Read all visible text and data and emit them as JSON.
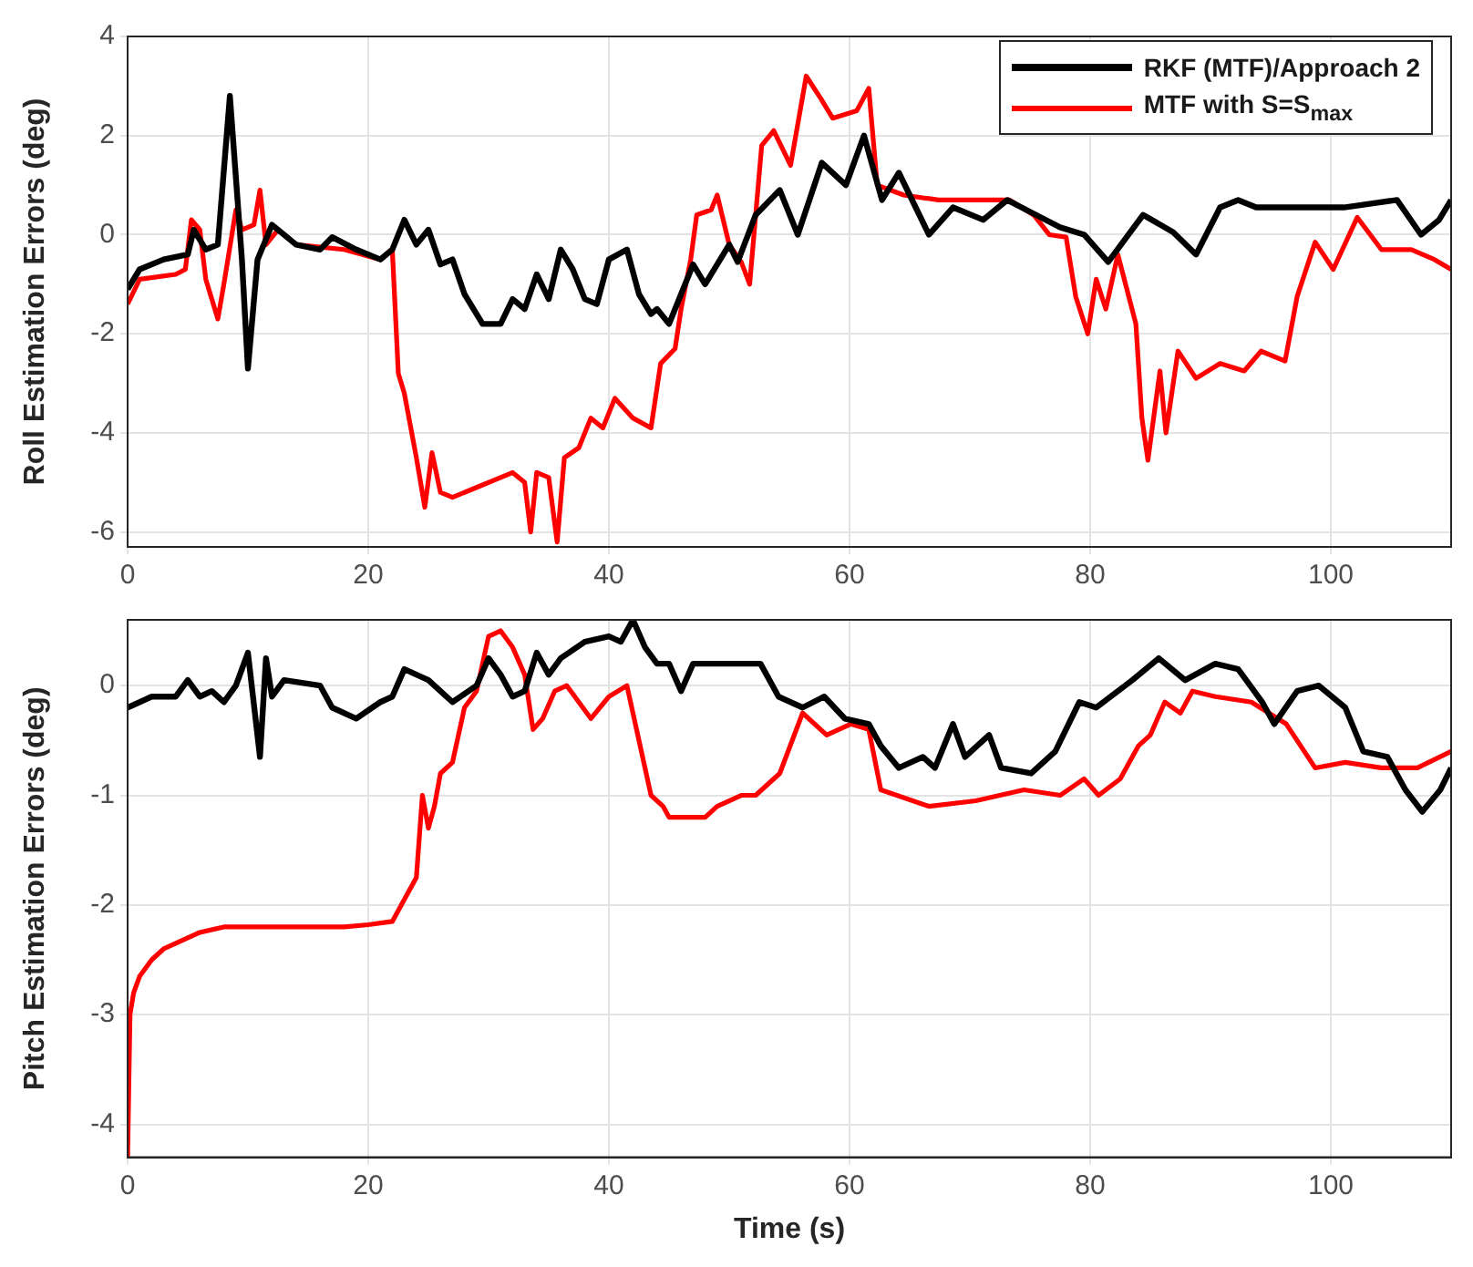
{
  "chart_data": [
    {
      "type": "line",
      "ylabel": "Roll Estimation Errors (deg)",
      "xlim": [
        0,
        110
      ],
      "xticks": [
        0,
        20,
        40,
        60,
        80,
        100
      ],
      "ylim": [
        -6.3,
        4
      ],
      "yticks": [
        -6,
        -4,
        -2,
        0,
        2,
        4
      ],
      "grid": true,
      "legend": "top right",
      "series": [
        {
          "name": "RKF (MTF)/Approach 2",
          "color": "#000000",
          "x": [
            0,
            1,
            3,
            5,
            5.5,
            6.5,
            7.5,
            8.5,
            9.5,
            10,
            10.8,
            12,
            14,
            16,
            17,
            19,
            21,
            22,
            23,
            24,
            25,
            26,
            27,
            28,
            29.5,
            31,
            32,
            33,
            34,
            35,
            36,
            37,
            38,
            39,
            40,
            41.5,
            42.5,
            43.5,
            44,
            45,
            46,
            47,
            48,
            49,
            50,
            50.7,
            52.2,
            54.2,
            55.7,
            57.7,
            59.7,
            61.2,
            62.7,
            64.1,
            66.6,
            68.6,
            71.1,
            73.1,
            75.5,
            77.5,
            79.5,
            81.5,
            84.4,
            86.9,
            88.8,
            90.8,
            92.3,
            93.8,
            101.1,
            105.5,
            107.5,
            109,
            110
          ],
          "values": [
            -1.1,
            -0.7,
            -0.5,
            -0.4,
            0.1,
            -0.3,
            -0.2,
            2.8,
            -0.5,
            -2.7,
            -0.5,
            0.2,
            -0.2,
            -0.3,
            -0.05,
            -0.3,
            -0.5,
            -0.3,
            0.3,
            -0.2,
            0.1,
            -0.6,
            -0.5,
            -1.2,
            -1.8,
            -1.8,
            -1.3,
            -1.5,
            -0.8,
            -1.3,
            -0.3,
            -0.7,
            -1.3,
            -1.4,
            -0.5,
            -0.3,
            -1.2,
            -1.6,
            -1.5,
            -1.8,
            -1.2,
            -0.6,
            -1,
            -0.6,
            -0.2,
            -0.55,
            0.4,
            0.9,
            0,
            1.45,
            1,
            2,
            0.7,
            1.25,
            0,
            0.55,
            0.3,
            0.7,
            0.4,
            0.15,
            0,
            -0.55,
            0.4,
            0.05,
            -0.4,
            0.55,
            0.7,
            0.55,
            0.55,
            0.7,
            0,
            0.3,
            0.7
          ]
        },
        {
          "name": "MTF with S=S$_{max}$",
          "color": "#ff0000",
          "x": [
            0,
            1,
            4,
            4.8,
            5.3,
            6,
            6.5,
            7,
            7.5,
            8,
            9,
            9.5,
            10.5,
            11,
            11.5,
            12.5,
            14,
            18,
            21,
            22,
            22.5,
            23,
            24,
            24.7,
            25.3,
            26,
            27,
            29,
            31,
            32,
            33,
            33.5,
            34,
            35,
            35.7,
            36.3,
            37.5,
            38.5,
            39.5,
            40.5,
            42,
            43.5,
            44.3,
            45.5,
            46,
            46.8,
            47.3,
            48.5,
            49,
            50,
            51,
            51.7,
            52.7,
            53.7,
            55.1,
            56.4,
            57.6,
            58.6,
            60.6,
            61.6,
            62.3,
            64.5,
            67.4,
            70.4,
            73.3,
            75.3,
            76.6,
            78,
            78.8,
            79.8,
            80.5,
            81.3,
            82.3,
            83.8,
            84.3,
            84.8,
            85.8,
            86.3,
            87.3,
            88.8,
            90.8,
            92.8,
            94.2,
            96.2,
            97.2,
            98.7,
            100.2,
            102.2,
            104.2,
            106.7,
            108.6,
            110
          ],
          "values": [
            -1.4,
            -0.9,
            -0.8,
            -0.7,
            0.3,
            0.1,
            -0.9,
            -1.3,
            -1.7,
            -1,
            0.5,
            0.1,
            0.2,
            0.9,
            -0.2,
            0.1,
            -0.2,
            -0.3,
            -0.5,
            -0.3,
            -2.8,
            -3.2,
            -4.5,
            -5.5,
            -4.4,
            -5.2,
            -5.3,
            -5.1,
            -4.9,
            -4.8,
            -5,
            -6,
            -4.8,
            -4.9,
            -6.2,
            -4.5,
            -4.3,
            -3.7,
            -3.9,
            -3.3,
            -3.7,
            -3.9,
            -2.6,
            -2.3,
            -1.5,
            -0.5,
            0.4,
            0.5,
            0.8,
            -0.2,
            -0.55,
            -1,
            1.8,
            2.1,
            1.4,
            3.2,
            2.75,
            2.35,
            2.5,
            2.95,
            1,
            0.8,
            0.7,
            0.7,
            0.7,
            0.4,
            0,
            -0.05,
            -1.25,
            -2,
            -0.9,
            -1.5,
            -0.4,
            -1.8,
            -3.7,
            -4.55,
            -2.75,
            -4,
            -2.35,
            -2.9,
            -2.6,
            -2.75,
            -2.35,
            -2.55,
            -1.25,
            -0.15,
            -0.7,
            0.35,
            -0.3,
            -0.3,
            -0.5,
            -0.7
          ]
        }
      ]
    },
    {
      "type": "line",
      "xlabel": "Time (s)",
      "ylabel": "Pitch Estimation Errors (deg)",
      "xlim": [
        0,
        110
      ],
      "xticks": [
        0,
        20,
        40,
        60,
        80,
        100
      ],
      "ylim": [
        -4.3,
        0.6
      ],
      "yticks": [
        -4,
        -3,
        -2,
        -1,
        0
      ],
      "grid": true,
      "series": [
        {
          "color": "#000000",
          "x": [
            0,
            2,
            4,
            5,
            6,
            7,
            8,
            9,
            10,
            11,
            11.5,
            12,
            13,
            16,
            17,
            19,
            21,
            22,
            23,
            25,
            27,
            29,
            30,
            31,
            32,
            33,
            34,
            35,
            36,
            38,
            40,
            41,
            42,
            43,
            44,
            45,
            46,
            47,
            49,
            52.6,
            54.1,
            56.1,
            57.9,
            59.6,
            61.6,
            62.6,
            64.1,
            66.1,
            67.1,
            68.6,
            69.6,
            71.6,
            72.6,
            75.1,
            77.1,
            79.1,
            80.5,
            83.5,
            85.7,
            87.9,
            90.4,
            92.3,
            94.3,
            95.3,
            97.2,
            99,
            101.2,
            102.7,
            104.7,
            106.2,
            107.6,
            109.1,
            110
          ],
          "values": [
            -0.2,
            -0.1,
            -0.1,
            0.05,
            -0.1,
            -0.05,
            -0.15,
            0,
            0.3,
            -0.65,
            0.25,
            -0.1,
            0.05,
            0,
            -0.2,
            -0.3,
            -0.15,
            -0.1,
            0.15,
            0.05,
            -0.15,
            0,
            0.25,
            0.1,
            -0.1,
            -0.05,
            0.3,
            0.1,
            0.25,
            0.4,
            0.45,
            0.4,
            0.6,
            0.35,
            0.2,
            0.2,
            -0.05,
            0.2,
            0.2,
            0.2,
            -0.1,
            -0.2,
            -0.1,
            -0.3,
            -0.35,
            -0.55,
            -0.75,
            -0.65,
            -0.75,
            -0.35,
            -0.65,
            -0.45,
            -0.75,
            -0.8,
            -0.6,
            -0.15,
            -0.2,
            0.05,
            0.25,
            0.05,
            0.2,
            0.15,
            -0.15,
            -0.35,
            -0.05,
            0,
            -0.2,
            -0.6,
            -0.65,
            -0.95,
            -1.15,
            -0.95,
            -0.75
          ]
        },
        {
          "color": "#ff0000",
          "x": [
            0,
            0.2,
            0.5,
            1,
            2,
            3,
            5,
            6,
            8,
            10,
            14,
            18,
            20,
            22,
            23,
            24,
            24.5,
            25,
            25.5,
            26,
            27,
            28,
            29,
            30,
            31,
            32,
            33,
            33.7,
            34.5,
            35.5,
            36.5,
            37.5,
            38.5,
            40,
            41.5,
            42.5,
            43.5,
            44.5,
            45,
            48,
            49,
            51,
            52.2,
            54.2,
            56.1,
            58.1,
            60.1,
            61.6,
            62.6,
            66.6,
            70.5,
            74.5,
            77.5,
            79.5,
            80.7,
            82.5,
            84,
            85,
            86.2,
            87.5,
            88.5,
            90.4,
            93.4,
            96.3,
            98.7,
            101.2,
            104.2,
            107.2,
            110
          ],
          "values": [
            -4.3,
            -3,
            -2.8,
            -2.65,
            -2.5,
            -2.4,
            -2.3,
            -2.25,
            -2.2,
            -2.2,
            -2.2,
            -2.2,
            -2.18,
            -2.15,
            -1.95,
            -1.75,
            -1,
            -1.3,
            -1.1,
            -0.8,
            -0.7,
            -0.2,
            -0.05,
            0.45,
            0.5,
            0.35,
            0.1,
            -0.4,
            -0.3,
            -0.05,
            0,
            -0.15,
            -0.3,
            -0.1,
            0,
            -0.5,
            -1,
            -1.1,
            -1.2,
            -1.2,
            -1.1,
            -1,
            -1,
            -0.8,
            -0.25,
            -0.45,
            -0.35,
            -0.4,
            -0.95,
            -1.1,
            -1.05,
            -0.95,
            -1,
            -0.85,
            -1,
            -0.85,
            -0.55,
            -0.45,
            -0.15,
            -0.25,
            -0.05,
            -0.1,
            -0.15,
            -0.35,
            -0.75,
            -0.7,
            -0.75,
            -0.75,
            -0.6
          ]
        }
      ]
    }
  ]
}
